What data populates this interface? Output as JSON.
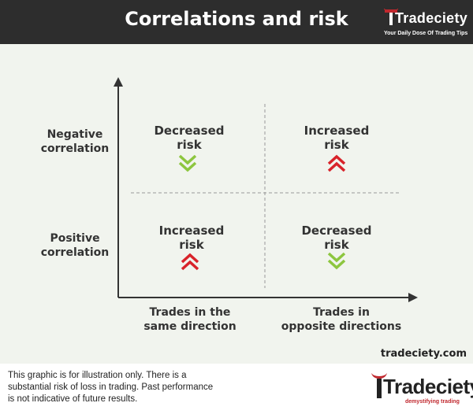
{
  "header": {
    "title": "Correlations and risk",
    "brand_name": "Tradeciety",
    "brand_tagline": "Your Daily Dose Of Trading Tips"
  },
  "diagram": {
    "y_labels": {
      "top": [
        "Negative",
        "correlation"
      ],
      "bottom": [
        "Positive",
        "correlation"
      ]
    },
    "x_labels": {
      "left": [
        "Trades in the",
        "same direction"
      ],
      "right": [
        "Trades in",
        "opposite directions"
      ]
    },
    "quadrants": {
      "top_left": {
        "lines": [
          "Decreased",
          "risk"
        ],
        "direction": "down",
        "color": "#8dc63f"
      },
      "top_right": {
        "lines": [
          "Increased",
          "risk"
        ],
        "direction": "up",
        "color": "#d8232a"
      },
      "bottom_left": {
        "lines": [
          "Increased",
          "risk"
        ],
        "direction": "up",
        "color": "#d8232a"
      },
      "bottom_right": {
        "lines": [
          "Decreased",
          "risk"
        ],
        "direction": "down",
        "color": "#8dc63f"
      }
    }
  },
  "site_url": "tradeciety.com",
  "footer": {
    "disclaimer": [
      "This graphic is for illustration only. There is a",
      "substantial  risk of loss in trading. Past performance",
      "is not indicative of future results."
    ],
    "brand_name": "Tradeciety",
    "brand_tagline": "demystifying trading"
  },
  "colors": {
    "header_bg": "#2d2d2d",
    "increased": "#d8232a",
    "decreased": "#8dc63f",
    "brand_red": "#c0272d"
  }
}
